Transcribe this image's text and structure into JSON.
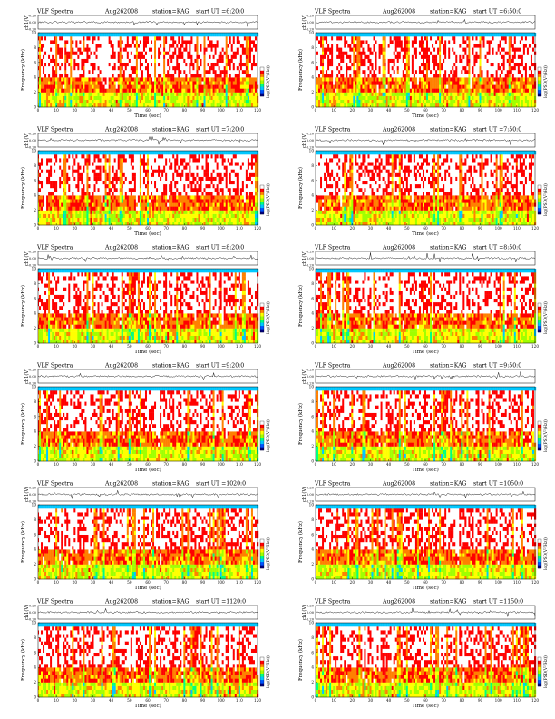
{
  "page": {
    "header_words": [
      "VLF Spectra",
      "station=KAG"
    ]
  },
  "chart_data": [
    {
      "type": "heatmap",
      "title": "VLF Spectra",
      "date": "Aug262008",
      "station": "station=KAG",
      "start_label": "start  UT =6:20:0",
      "ch_ylabel": "ch1(V)",
      "ch_ticks": [
        "0.20",
        "0.00",
        "-0.20"
      ],
      "ch_ylim": [
        -0.2,
        0.2
      ],
      "ylabel": "Frequency (kHz)",
      "yticks": [
        0,
        2,
        4,
        6,
        8,
        10
      ],
      "ylim": [
        0,
        10
      ],
      "xlabel": "Time (sec)",
      "xticks": [
        0,
        10,
        20,
        30,
        40,
        50,
        60,
        70,
        80,
        90,
        100,
        110,
        120
      ],
      "xlim": [
        0,
        120
      ],
      "colorbar_label": "log(PSD(V²/Hz))",
      "colorbar_colors": [
        "#000080",
        "#0055ff",
        "#00c8ff",
        "#00ff80",
        "#a0ff00",
        "#ffff00",
        "#ff8000",
        "#ff0000",
        "#ffffff"
      ]
    },
    {
      "type": "heatmap",
      "title": "VLF Spectra",
      "date": "Aug262008",
      "station": "station=KAG",
      "start_label": "start  UT =6:50:0",
      "ch_ylabel": "ch1(V)",
      "ch_ticks": [
        "0.20",
        "0.00",
        "-0.20"
      ],
      "ch_ylim": [
        -0.2,
        0.2
      ],
      "ylabel": "Frequency (kHz)",
      "yticks": [
        0,
        2,
        4,
        6,
        8,
        10
      ],
      "ylim": [
        0,
        10
      ],
      "xlabel": "Time (sec)",
      "xticks": [
        0,
        10,
        20,
        30,
        40,
        50,
        60,
        70,
        80,
        90,
        100,
        110,
        120
      ],
      "xlim": [
        0,
        120
      ],
      "colorbar_label": "log(PSD(V²/Hz))",
      "colorbar_colors": [
        "#000080",
        "#0055ff",
        "#00c8ff",
        "#00ff80",
        "#a0ff00",
        "#ffff00",
        "#ff8000",
        "#ff0000",
        "#ffffff"
      ]
    },
    {
      "type": "heatmap",
      "title": "VLF Spectra",
      "date": "Aug262008",
      "station": "station=KAG",
      "start_label": "start  UT =7:20:0",
      "ch_ylabel": "ch1(V)",
      "ch_ticks": [
        "0.20",
        "0.00",
        "-0.20"
      ],
      "ch_ylim": [
        -0.2,
        0.2
      ],
      "ylabel": "Frequency (kHz)",
      "yticks": [
        0,
        2,
        4,
        6,
        8,
        10
      ],
      "ylim": [
        0,
        10
      ],
      "xlabel": "Time (sec)",
      "xticks": [
        0,
        10,
        20,
        30,
        40,
        50,
        60,
        70,
        80,
        90,
        100,
        110,
        120
      ],
      "xlim": [
        0,
        120
      ],
      "colorbar_label": "log(PSD(V²/Hz))",
      "colorbar_colors": [
        "#000080",
        "#0055ff",
        "#00c8ff",
        "#00ff80",
        "#a0ff00",
        "#ffff00",
        "#ff8000",
        "#ff0000",
        "#ffffff"
      ]
    },
    {
      "type": "heatmap",
      "title": "VLF Spectra",
      "date": "Aug262008",
      "station": "station=KAG",
      "start_label": "start  UT =7:50:0",
      "ch_ylabel": "ch1(V)",
      "ch_ticks": [
        "0.20",
        "0.00",
        "-0.20"
      ],
      "ch_ylim": [
        -0.2,
        0.2
      ],
      "ylabel": "Frequency (kHz)",
      "yticks": [
        0,
        2,
        4,
        6,
        8,
        10
      ],
      "ylim": [
        0,
        10
      ],
      "xlabel": "Time (sec)",
      "xticks": [
        0,
        10,
        20,
        30,
        40,
        50,
        60,
        70,
        80,
        90,
        100,
        110,
        120
      ],
      "xlim": [
        0,
        120
      ],
      "colorbar_label": "log(PSD(V²/Hz))",
      "colorbar_colors": [
        "#000080",
        "#0055ff",
        "#00c8ff",
        "#00ff80",
        "#a0ff00",
        "#ffff00",
        "#ff8000",
        "#ff0000",
        "#ffffff"
      ]
    },
    {
      "type": "heatmap",
      "title": "VLF Spectra",
      "date": "Aug262008",
      "station": "station=KAG",
      "start_label": "start  UT =8:20:0",
      "ch_ylabel": "ch1(V)",
      "ch_ticks": [
        "0.20",
        "0.00",
        "-0.20"
      ],
      "ch_ylim": [
        -0.2,
        0.2
      ],
      "ylabel": "Frequency (kHz)",
      "yticks": [
        0,
        2,
        4,
        6,
        8,
        10
      ],
      "ylim": [
        0,
        10
      ],
      "xlabel": "Time (sec)",
      "xticks": [
        0,
        10,
        20,
        30,
        40,
        50,
        60,
        70,
        80,
        90,
        100,
        110,
        120
      ],
      "xlim": [
        0,
        120
      ],
      "colorbar_label": "log(PSD(V²/Hz))",
      "colorbar_colors": [
        "#000080",
        "#0055ff",
        "#00c8ff",
        "#00ff80",
        "#a0ff00",
        "#ffff00",
        "#ff8000",
        "#ff0000",
        "#ffffff"
      ]
    },
    {
      "type": "heatmap",
      "title": "VLF Spectra",
      "date": "Aug262008",
      "station": "station=KAG",
      "start_label": "start  UT =8:50:0",
      "ch_ylabel": "ch1(V)",
      "ch_ticks": [
        "0.20",
        "0.00",
        "-0.20"
      ],
      "ch_ylim": [
        -0.2,
        0.2
      ],
      "ylabel": "Frequency (kHz)",
      "yticks": [
        0,
        2,
        4,
        6,
        8,
        10
      ],
      "ylim": [
        0,
        10
      ],
      "xlabel": "Time (sec)",
      "xticks": [
        0,
        10,
        20,
        30,
        40,
        50,
        60,
        70,
        80,
        90,
        100,
        110,
        120
      ],
      "xlim": [
        0,
        120
      ],
      "colorbar_label": "log(PSD(V²/Hz))",
      "colorbar_colors": [
        "#000080",
        "#0055ff",
        "#00c8ff",
        "#00ff80",
        "#a0ff00",
        "#ffff00",
        "#ff8000",
        "#ff0000",
        "#ffffff"
      ]
    },
    {
      "type": "heatmap",
      "title": "VLF Spectra",
      "date": "Aug262008",
      "station": "station=KAG",
      "start_label": "start  UT =9:20:0",
      "ch_ylabel": "ch1(V)",
      "ch_ticks": [
        "0.20",
        "0.00",
        "-0.20"
      ],
      "ch_ylim": [
        -0.2,
        0.2
      ],
      "ylabel": "Frequency (kHz)",
      "yticks": [
        0,
        2,
        4,
        6,
        8,
        10
      ],
      "ylim": [
        0,
        10
      ],
      "xlabel": "Time (sec)",
      "xticks": [
        0,
        10,
        20,
        30,
        40,
        50,
        60,
        70,
        80,
        90,
        100,
        110,
        120
      ],
      "xlim": [
        0,
        120
      ],
      "colorbar_label": "log(PSD(V²/Hz))",
      "colorbar_colors": [
        "#000080",
        "#0055ff",
        "#00c8ff",
        "#00ff80",
        "#a0ff00",
        "#ffff00",
        "#ff8000",
        "#ff0000",
        "#ffffff"
      ]
    },
    {
      "type": "heatmap",
      "title": "VLF Spectra",
      "date": "Aug262008",
      "station": "station=KAG",
      "start_label": "start  UT =9:50:0",
      "ch_ylabel": "ch1(V)",
      "ch_ticks": [
        "0.20",
        "0.00",
        "-0.20"
      ],
      "ch_ylim": [
        -0.2,
        0.2
      ],
      "ylabel": "Frequency (kHz)",
      "yticks": [
        0,
        2,
        4,
        6,
        8,
        10
      ],
      "ylim": [
        0,
        10
      ],
      "xlabel": "Time (sec)",
      "xticks": [
        0,
        10,
        20,
        30,
        40,
        50,
        60,
        70,
        80,
        90,
        100,
        110,
        120
      ],
      "xlim": [
        0,
        120
      ],
      "colorbar_label": "log(PSD(V²/Hz))",
      "colorbar_colors": [
        "#000080",
        "#0055ff",
        "#00c8ff",
        "#00ff80",
        "#a0ff00",
        "#ffff00",
        "#ff8000",
        "#ff0000",
        "#ffffff"
      ]
    },
    {
      "type": "heatmap",
      "title": "VLF Spectra",
      "date": "Aug262008",
      "station": "station=KAG",
      "start_label": "start  UT =1020:0",
      "ch_ylabel": "ch1(V)",
      "ch_ticks": [
        "0.20",
        "0.00",
        "-0.20"
      ],
      "ch_ylim": [
        -0.2,
        0.2
      ],
      "ylabel": "Frequency (kHz)",
      "yticks": [
        0,
        2,
        4,
        6,
        8,
        10
      ],
      "ylim": [
        0,
        10
      ],
      "xlabel": "Time (sec)",
      "xticks": [
        0,
        10,
        20,
        30,
        40,
        50,
        60,
        70,
        80,
        90,
        100,
        110,
        120
      ],
      "xlim": [
        0,
        120
      ],
      "colorbar_label": "log(PSD(V²/Hz))",
      "colorbar_colors": [
        "#000080",
        "#0055ff",
        "#00c8ff",
        "#00ff80",
        "#a0ff00",
        "#ffff00",
        "#ff8000",
        "#ff0000",
        "#ffffff"
      ]
    },
    {
      "type": "heatmap",
      "title": "VLF Spectra",
      "date": "Aug262008",
      "station": "station=KAG",
      "start_label": "start  UT =1050:0",
      "ch_ylabel": "ch1(V)",
      "ch_ticks": [
        "0.20",
        "0.00",
        "-0.20"
      ],
      "ch_ylim": [
        -0.2,
        0.2
      ],
      "ylabel": "Frequency (kHz)",
      "yticks": [
        0,
        2,
        4,
        6,
        8,
        10
      ],
      "ylim": [
        0,
        10
      ],
      "xlabel": "Time (sec)",
      "xticks": [
        0,
        10,
        20,
        30,
        40,
        50,
        60,
        70,
        80,
        90,
        100,
        110,
        120
      ],
      "xlim": [
        0,
        120
      ],
      "colorbar_label": "log(PSD(V²/Hz))",
      "colorbar_colors": [
        "#000080",
        "#0055ff",
        "#00c8ff",
        "#00ff80",
        "#a0ff00",
        "#ffff00",
        "#ff8000",
        "#ff0000",
        "#ffffff"
      ]
    },
    {
      "type": "heatmap",
      "title": "VLF Spectra",
      "date": "Aug262008",
      "station": "station=KAG",
      "start_label": "start  UT =1120:0",
      "ch_ylabel": "ch1(V)",
      "ch_ticks": [
        "0.20",
        "0.00",
        "-0.20"
      ],
      "ch_ylim": [
        -0.2,
        0.2
      ],
      "ylabel": "Frequency (kHz)",
      "yticks": [
        0,
        2,
        4,
        6,
        8,
        10
      ],
      "ylim": [
        0,
        10
      ],
      "xlabel": "Time (sec)",
      "xticks": [
        0,
        10,
        20,
        30,
        40,
        50,
        60,
        70,
        80,
        90,
        100,
        110,
        120
      ],
      "xlim": [
        0,
        120
      ],
      "colorbar_label": "log(PSD(V²/Hz))",
      "colorbar_colors": [
        "#000080",
        "#0055ff",
        "#00c8ff",
        "#00ff80",
        "#a0ff00",
        "#ffff00",
        "#ff8000",
        "#ff0000",
        "#ffffff"
      ]
    },
    {
      "type": "heatmap",
      "title": "VLF Spectra",
      "date": "Aug262008",
      "station": "station=KAG",
      "start_label": "start  UT =1150:0",
      "ch_ylabel": "ch1(V)",
      "ch_ticks": [
        "0.20",
        "0.00",
        "-0.20"
      ],
      "ch_ylim": [
        -0.2,
        0.2
      ],
      "ylabel": "Frequency (kHz)",
      "yticks": [
        0,
        2,
        4,
        6,
        8,
        10
      ],
      "ylim": [
        0,
        10
      ],
      "xlabel": "Time (sec)",
      "xticks": [
        0,
        10,
        20,
        30,
        40,
        50,
        60,
        70,
        80,
        90,
        100,
        110,
        120
      ],
      "xlim": [
        0,
        120
      ],
      "colorbar_label": "log(PSD(V²/Hz))",
      "colorbar_colors": [
        "#000080",
        "#0055ff",
        "#00c8ff",
        "#00ff80",
        "#a0ff00",
        "#ffff00",
        "#ff8000",
        "#ff0000",
        "#ffffff"
      ]
    }
  ]
}
